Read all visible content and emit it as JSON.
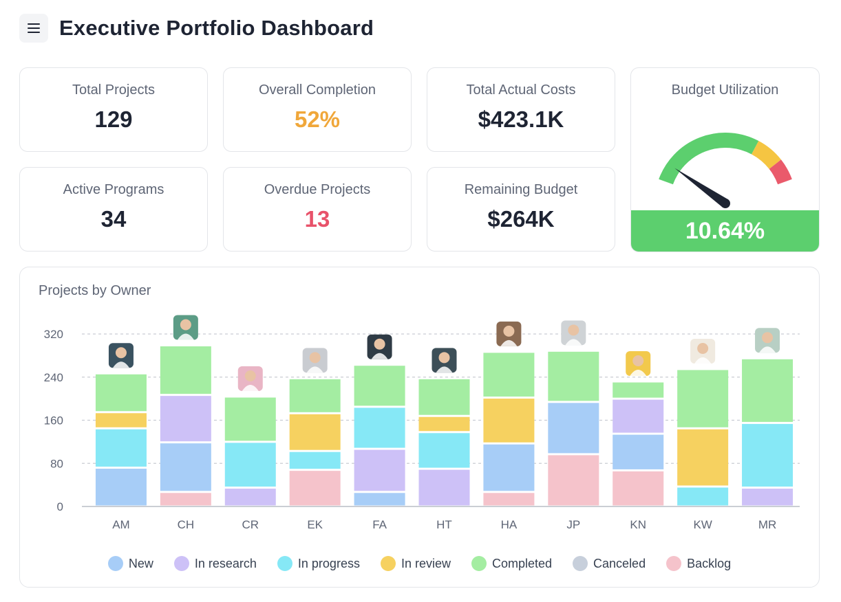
{
  "header": {
    "title": "Executive Portfolio Dashboard",
    "menu_icon": "hamburger-icon"
  },
  "kpis": [
    {
      "label": "Total Projects",
      "value": "129",
      "color": "#1e2433"
    },
    {
      "label": "Overall Completion",
      "value": "52%",
      "color": "#f0a73a"
    },
    {
      "label": "Total Actual Costs",
      "value": "$423.1K",
      "color": "#1e2433"
    },
    {
      "label": "Active Programs",
      "value": "34",
      "color": "#1e2433"
    },
    {
      "label": "Overdue Projects",
      "value": "13",
      "color": "#e8526a"
    },
    {
      "label": "Remaining Budget",
      "value": "$264K",
      "color": "#1e2433"
    }
  ],
  "gauge": {
    "label": "Budget Utilization",
    "value_text": "10.64%",
    "needle_fraction": 0.1064,
    "zones": [
      {
        "from": 0,
        "to": 0.7,
        "color": "#5ccf6e"
      },
      {
        "from": 0.7,
        "to": 0.87,
        "color": "#f5c542"
      },
      {
        "from": 0.87,
        "to": 1.0,
        "color": "#ea5a6b"
      }
    ],
    "footer_color": "#5ccf6e"
  },
  "chart_data": {
    "type": "bar",
    "stacked": true,
    "title": "Projects by Owner",
    "categories": [
      "AM",
      "CH",
      "CR",
      "EK",
      "FA",
      "HT",
      "HA",
      "JP",
      "KN",
      "KW",
      "MR"
    ],
    "yticks": [
      "0",
      "80",
      "160",
      "240",
      "320"
    ],
    "ylim": [
      0,
      320
    ],
    "grid": "horizontal-dashed",
    "legend_position": "bottom",
    "series": [
      {
        "name": "New",
        "color": "#a7cdf7",
        "values": [
          72,
          92,
          0,
          0,
          27,
          0,
          90,
          97,
          68,
          0,
          0
        ]
      },
      {
        "name": "In research",
        "color": "#cdc1f7",
        "values": [
          0,
          88,
          35,
          0,
          80,
          70,
          0,
          0,
          65,
          0,
          35
        ]
      },
      {
        "name": "In progress",
        "color": "#86e8f6",
        "values": [
          73,
          0,
          85,
          35,
          78,
          68,
          0,
          0,
          0,
          37,
          120
        ]
      },
      {
        "name": "In review",
        "color": "#f6d160",
        "values": [
          30,
          0,
          0,
          70,
          0,
          30,
          85,
          0,
          0,
          108,
          0
        ]
      },
      {
        "name": "Completed",
        "color": "#a4eda2",
        "values": [
          72,
          92,
          84,
          65,
          78,
          70,
          85,
          95,
          32,
          110,
          120
        ]
      },
      {
        "name": "Canceled",
        "color": "#c7cfdb",
        "values": [
          0,
          0,
          0,
          0,
          0,
          0,
          0,
          0,
          0,
          0,
          0
        ]
      },
      {
        "name": "Backlog",
        "color": "#f5c3cb",
        "values": [
          0,
          27,
          0,
          68,
          0,
          0,
          27,
          97,
          67,
          0,
          0
        ]
      }
    ],
    "stack_order": [
      "Backlog",
      "New",
      "In research",
      "In progress",
      "In review",
      "Completed",
      "Canceled"
    ],
    "avatar_colors": [
      "#3a5260",
      "#5c9c86",
      "#e9b5c5",
      "#c9ccd1",
      "#2f3b45",
      "#3d4f58",
      "#8a6a52",
      "#cfd3d6",
      "#f2c94c",
      "#f0eae0",
      "#b8cfc4"
    ]
  }
}
